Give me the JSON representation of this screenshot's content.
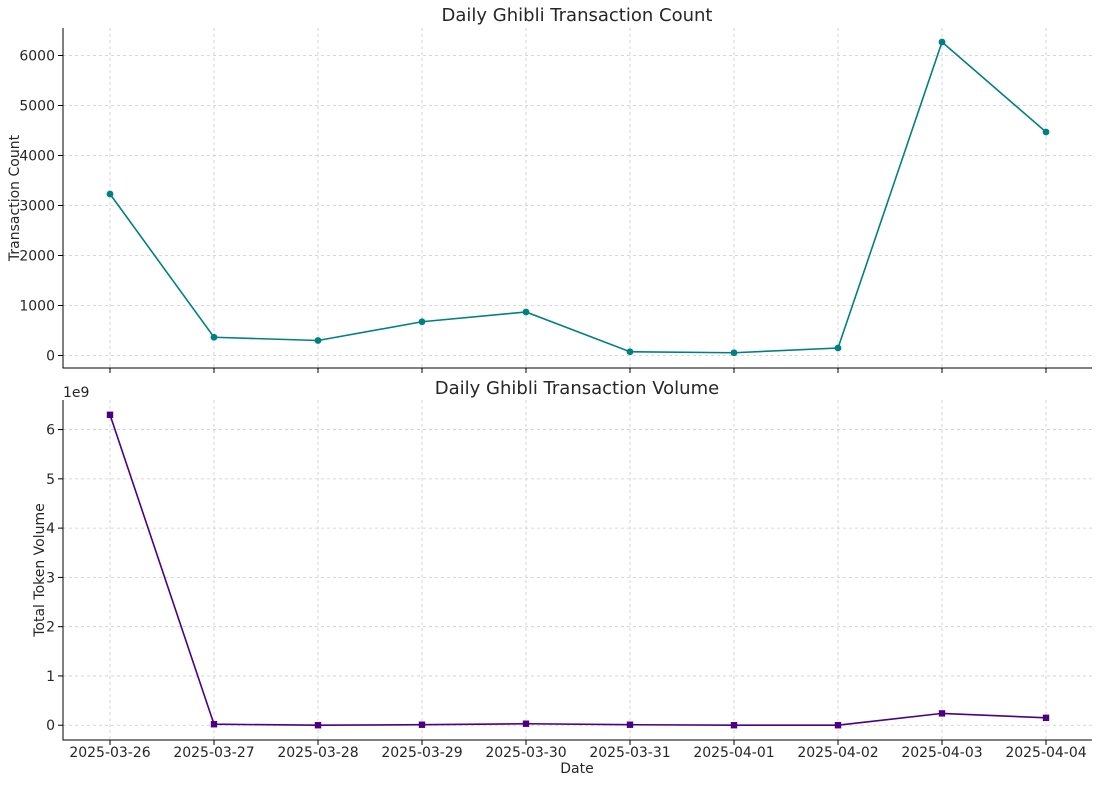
{
  "chart_data": [
    {
      "type": "line",
      "title": "Daily Ghibli Transaction Count",
      "xlabel": "",
      "ylabel": "Transaction Count",
      "categories": [
        "2025-03-26",
        "2025-03-27",
        "2025-03-28",
        "2025-03-29",
        "2025-03-30",
        "2025-03-31",
        "2025-04-01",
        "2025-04-02",
        "2025-04-03",
        "2025-04-04"
      ],
      "values": [
        3230,
        365,
        300,
        675,
        870,
        75,
        55,
        150,
        6270,
        4470
      ],
      "ylim": [
        -250,
        6550
      ],
      "yticks": [
        0,
        1000,
        2000,
        3000,
        4000,
        5000,
        6000
      ],
      "ytick_labels": [
        "0",
        "1000",
        "2000",
        "3000",
        "4000",
        "5000",
        "6000"
      ],
      "color": "#008080",
      "marker": "circle",
      "grid": true
    },
    {
      "type": "line",
      "title": "Daily Ghibli Transaction Volume",
      "xlabel": "Date",
      "ylabel": "Total Token Volume",
      "offset_label": "1e9",
      "categories": [
        "2025-03-26",
        "2025-03-27",
        "2025-03-28",
        "2025-03-29",
        "2025-03-30",
        "2025-03-31",
        "2025-04-01",
        "2025-04-02",
        "2025-04-03",
        "2025-04-04"
      ],
      "values": [
        6.3,
        0.02,
        0.0,
        0.01,
        0.03,
        0.01,
        0.0,
        0.0,
        0.24,
        0.15
      ],
      "ylim": [
        -0.3,
        6.6
      ],
      "yticks": [
        0,
        1,
        2,
        3,
        4,
        5,
        6
      ],
      "ytick_labels": [
        "0",
        "1",
        "2",
        "3",
        "4",
        "5",
        "6"
      ],
      "color": "#4B0082",
      "marker": "square",
      "grid": true
    }
  ]
}
